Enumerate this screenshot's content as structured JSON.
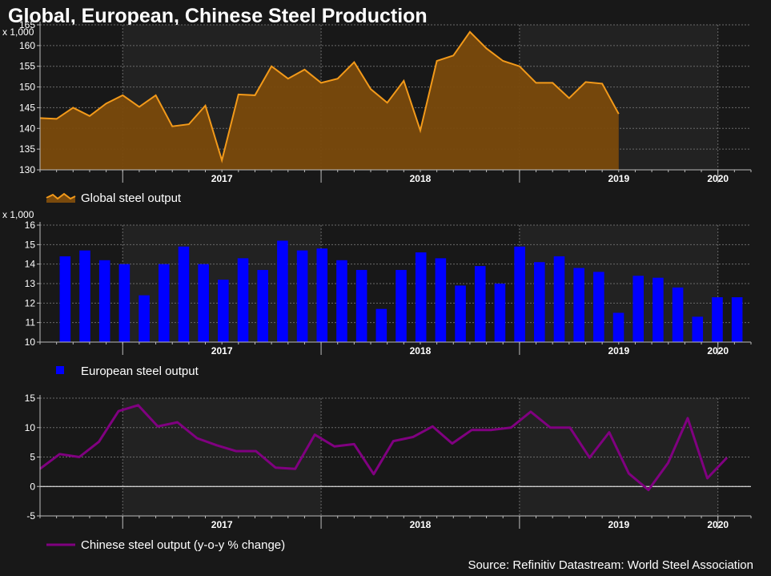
{
  "title": "Global, European, Chinese Steel Production",
  "source": "Source: Refinitiv Datastream: World Steel Association",
  "colors": {
    "background": "#181818",
    "shade": "#222222",
    "grid": "#6a6a6a",
    "axis": "#bbbbbb",
    "global": "#f39a1a",
    "global_fill": "#7a4a0c",
    "european": "#0000ff",
    "chinese": "#800080"
  },
  "chart_data": [
    {
      "type": "area",
      "unit_label": "x 1,000",
      "ylim": [
        130,
        165
      ],
      "yticks": [
        130,
        135,
        140,
        145,
        150,
        155,
        160,
        165
      ],
      "x_start": "2016-08",
      "x_end": "2020-03",
      "year_labels": [
        {
          "label": "2017",
          "date": "2017-01"
        },
        {
          "label": "2018",
          "date": "2018-01"
        },
        {
          "label": "2019",
          "date": "2019-01"
        },
        {
          "label": "2020",
          "date": "2020-01"
        }
      ],
      "grid": true,
      "legend": "bottom-left",
      "series": [
        {
          "name": "Global steel output",
          "x": [
            "2016-08",
            "2016-09",
            "2016-10",
            "2016-11",
            "2016-12",
            "2017-01",
            "2017-02",
            "2017-03",
            "2017-04",
            "2017-05",
            "2017-06",
            "2017-07",
            "2017-08",
            "2017-09",
            "2017-10",
            "2017-11",
            "2017-12",
            "2018-01",
            "2018-02",
            "2018-03",
            "2018-04",
            "2018-05",
            "2018-06",
            "2018-07",
            "2018-08",
            "2018-09",
            "2018-10",
            "2018-11",
            "2018-12",
            "2019-01",
            "2019-02",
            "2019-03",
            "2019-04",
            "2019-05",
            "2019-06",
            "2019-07",
            "2019-08",
            "2019-09",
            "2019-10",
            "2019-11",
            "2019-12",
            "2020-01",
            "2020-02"
          ],
          "values": [
            142.5,
            142.3,
            145.0,
            143.0,
            146.0,
            148.0,
            145.2,
            148.0,
            140.5,
            141.0,
            145.5,
            132.3,
            148.2,
            148.0,
            155.0,
            152.0,
            154.2,
            151.0,
            152.0,
            156.0,
            149.5,
            146.2,
            151.5,
            139.5,
            156.3,
            157.6,
            163.3,
            159.3,
            156.3,
            155.0,
            151.0,
            151.0,
            147.3,
            151.2,
            150.8,
            143.5,
            null,
            null,
            null,
            null,
            null,
            null,
            null
          ]
        }
      ]
    },
    {
      "type": "bar",
      "unit_label": "x 1,000",
      "ylim": [
        10,
        16
      ],
      "yticks": [
        10,
        11,
        12,
        13,
        14,
        15,
        16
      ],
      "x_start": "2016-08",
      "x_end": "2020-03",
      "year_labels": [
        {
          "label": "2017",
          "date": "2017-01"
        },
        {
          "label": "2018",
          "date": "2018-01"
        },
        {
          "label": "2019",
          "date": "2019-01"
        },
        {
          "label": "2020",
          "date": "2020-01"
        }
      ],
      "grid": true,
      "legend": "bottom-left",
      "series": [
        {
          "name": "European steel output",
          "values": [
            14.4,
            14.7,
            14.2,
            14.0,
            12.4,
            14.0,
            14.9,
            14.0,
            13.2,
            14.3,
            13.7,
            15.2,
            14.7,
            14.8,
            14.2,
            13.7,
            11.7,
            13.7,
            14.6,
            14.3,
            12.9,
            13.9,
            13.0,
            14.9,
            14.1,
            14.4,
            13.8,
            13.6,
            11.5,
            13.4,
            13.3,
            12.8,
            11.3,
            12.3,
            12.3
          ]
        }
      ]
    },
    {
      "type": "line",
      "ylim": [
        -5,
        15
      ],
      "yticks": [
        -5,
        0,
        5,
        10,
        15
      ],
      "x_start": "2016-08",
      "x_end": "2020-03",
      "year_labels": [
        {
          "label": "2017",
          "date": "2017-01"
        },
        {
          "label": "2018",
          "date": "2018-01"
        },
        {
          "label": "2019",
          "date": "2019-01"
        },
        {
          "label": "2020",
          "date": "2020-01"
        }
      ],
      "grid": true,
      "legend": "bottom-left",
      "series": [
        {
          "name": "Chinese steel output (y-o-y % change)",
          "values": [
            3.0,
            5.5,
            5.0,
            7.6,
            12.8,
            13.8,
            10.2,
            10.9,
            8.2,
            7.0,
            6.0,
            6.0,
            3.2,
            3.0,
            8.8,
            6.8,
            7.2,
            2.1,
            7.7,
            8.4,
            10.2,
            7.3,
            9.6,
            9.6,
            10.0,
            12.7,
            10.0,
            10.0,
            4.9,
            9.2,
            2.2,
            -0.6,
            4.0,
            11.6,
            1.4,
            4.9
          ]
        }
      ]
    }
  ]
}
